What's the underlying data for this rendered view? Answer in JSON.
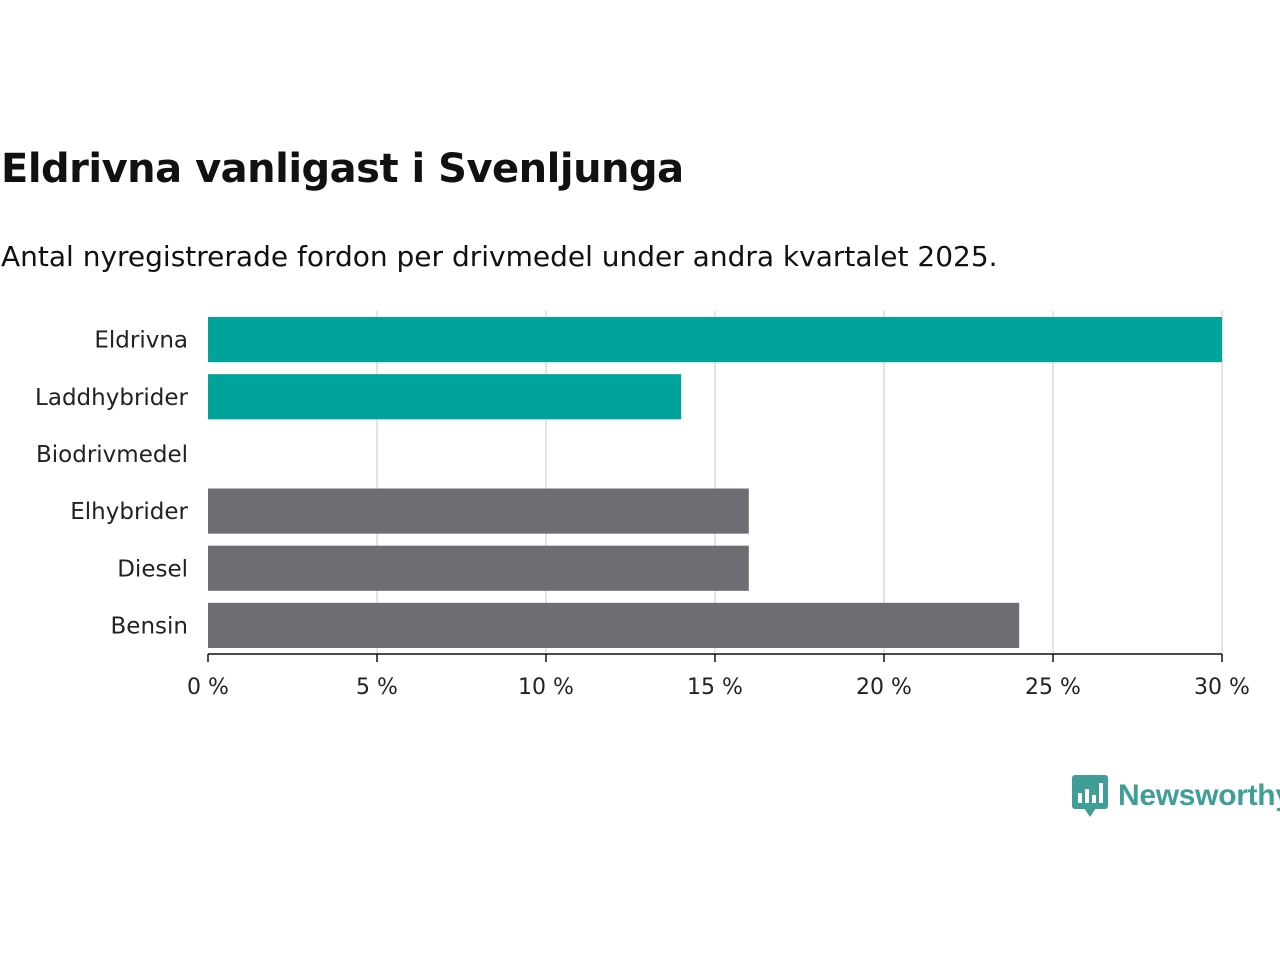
{
  "title": "Eldrivna vanligast i Svenljunga",
  "subtitle": "Antal nyregistrerade fordon per drivmedel under andra kvartalet 2025.",
  "chart_data": {
    "type": "bar",
    "orientation": "horizontal",
    "categories": [
      "Eldrivna",
      "Laddhybrider",
      "Biodrivmedel",
      "Elhybrider",
      "Diesel",
      "Bensin"
    ],
    "values": [
      30,
      14,
      0,
      16,
      16,
      24
    ],
    "unit": "%",
    "xlim": [
      0,
      30
    ],
    "xticks": [
      0,
      5,
      10,
      15,
      20,
      25,
      30
    ],
    "xtick_labels": [
      "0 %",
      "5 %",
      "10 %",
      "15 %",
      "20 %",
      "25 %",
      "30 %"
    ],
    "bar_colors": [
      "#00a39a",
      "#00a39a",
      "#00a39a",
      "#6f6d73",
      "#6f6d73",
      "#6f6d73"
    ],
    "grid": "vertical"
  },
  "logo": {
    "text": "Newsworthy",
    "icon": "bar-chart-speech-bubble-icon",
    "color": "#3f9e96"
  }
}
